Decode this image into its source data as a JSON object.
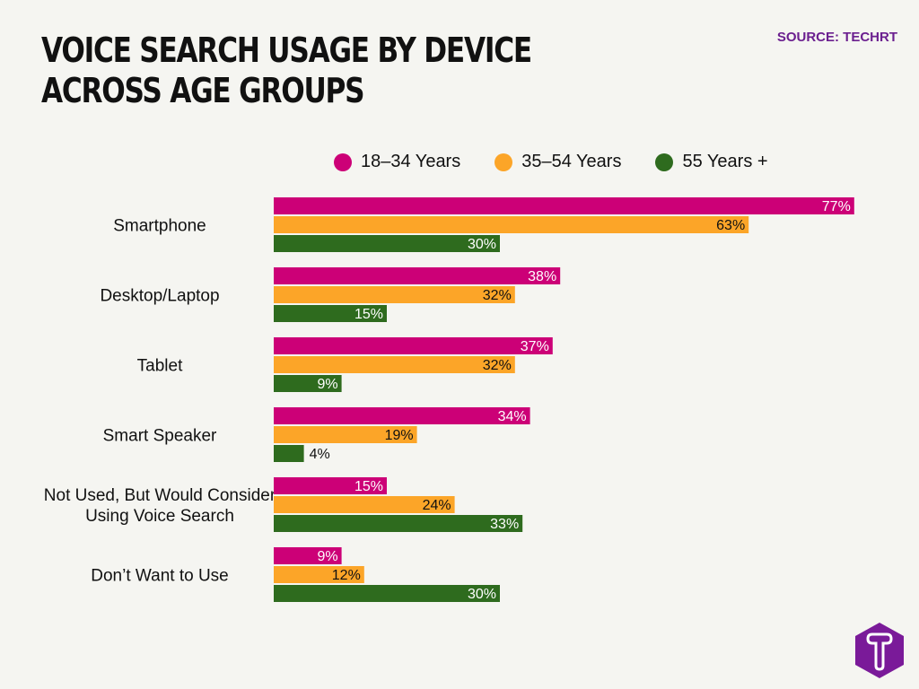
{
  "chart_data": {
    "type": "bar",
    "orientation": "horizontal",
    "title": "Voice Search Usage by Device Across Age Groups",
    "source": "SOURCE: TECHRT",
    "categories": [
      "Smartphone",
      "Desktop/Laptop",
      "Tablet",
      "Smart Speaker",
      "Not Used, But Would Consider Using Voice Search",
      "Don’t Want to Use"
    ],
    "category_lines": [
      [
        "Smartphone"
      ],
      [
        "Desktop/Laptop"
      ],
      [
        "Tablet"
      ],
      [
        "Smart Speaker"
      ],
      [
        "Not Used, But Would Consider",
        "Using Voice Search"
      ],
      [
        "Don’t Want to Use"
      ]
    ],
    "series": [
      {
        "name": "18–34 Years",
        "color": "#cc0077",
        "values": [
          77,
          38,
          37,
          34,
          15,
          9
        ]
      },
      {
        "name": "35–54 Years",
        "color": "#fca528",
        "values": [
          63,
          32,
          32,
          19,
          24,
          12
        ]
      },
      {
        "name": "55 Years +",
        "color": "#2e6b1e",
        "values": [
          30,
          15,
          9,
          4,
          33,
          30
        ]
      }
    ],
    "value_suffix": "%",
    "legend_position": "top",
    "grid": false,
    "logo": "T"
  }
}
